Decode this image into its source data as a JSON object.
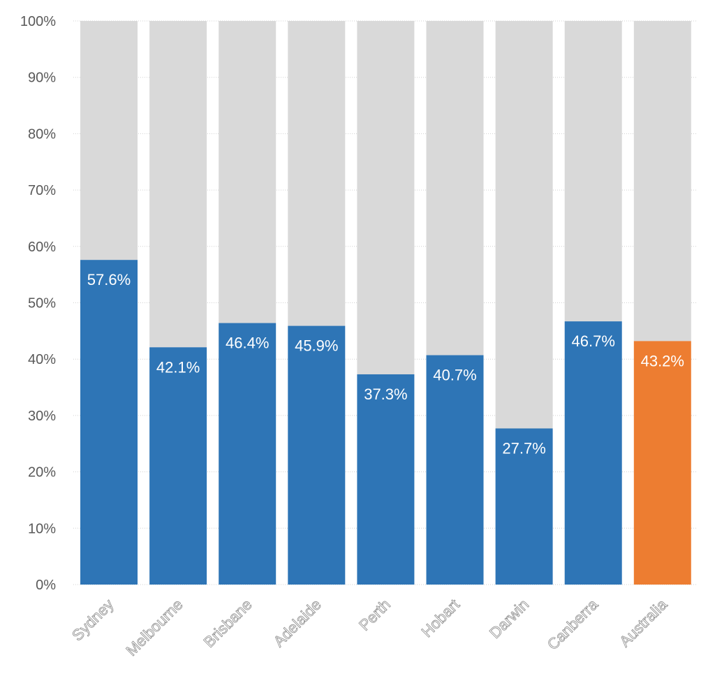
{
  "chart_data": {
    "type": "bar",
    "stacked_to_100": true,
    "categories": [
      "Sydney",
      "Melbourne",
      "Brisbane",
      "Adelaide",
      "Perth",
      "Hobart",
      "Darwin",
      "Canberra",
      "Australia"
    ],
    "values": [
      57.6,
      42.1,
      46.4,
      45.9,
      37.3,
      40.7,
      27.7,
      46.7,
      43.2
    ],
    "value_labels": [
      "57.6%",
      "42.1%",
      "46.4%",
      "45.9%",
      "37.3%",
      "40.7%",
      "27.7%",
      "46.7%",
      "43.2%"
    ],
    "highlight_category": "Australia",
    "ylim": [
      0,
      100
    ],
    "y_ticks": [
      0,
      10,
      20,
      30,
      40,
      50,
      60,
      70,
      80,
      90,
      100
    ],
    "y_tick_labels": [
      "0%",
      "10%",
      "20%",
      "30%",
      "40%",
      "50%",
      "60%",
      "70%",
      "80%",
      "90%",
      "100%"
    ],
    "title": "",
    "xlabel": "",
    "ylabel": "",
    "grid": true,
    "legend": "none",
    "colors": {
      "bar": "#2E75B6",
      "highlight": "#ED7D31",
      "remainder": "#D9D9D9",
      "tick_text": "#595959"
    }
  }
}
